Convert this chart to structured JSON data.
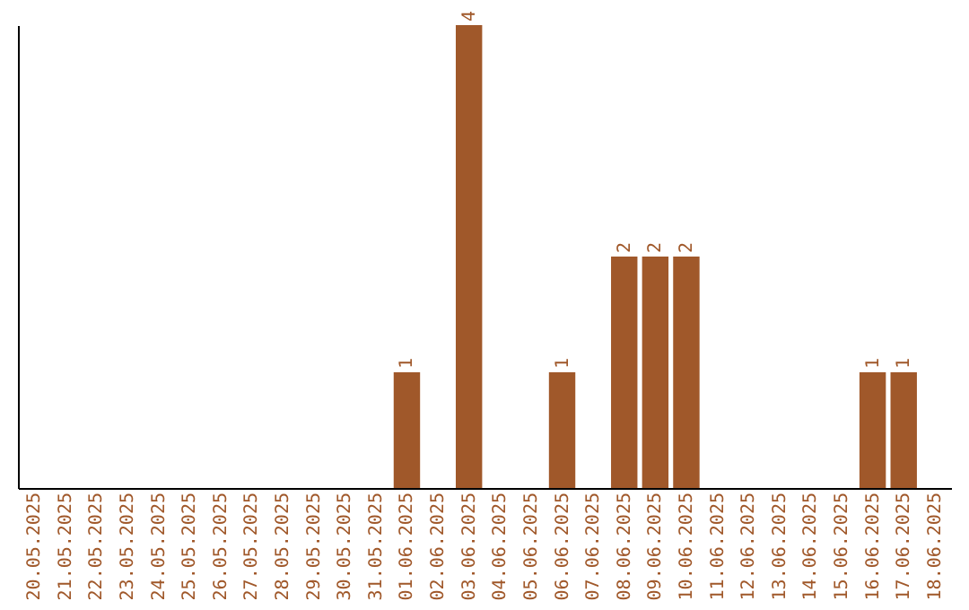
{
  "chart_data": {
    "type": "bar",
    "categories": [
      "20.05.2025",
      "21.05.2025",
      "22.05.2025",
      "23.05.2025",
      "24.05.2025",
      "25.05.2025",
      "26.05.2025",
      "27.05.2025",
      "28.05.2025",
      "29.05.2025",
      "30.05.2025",
      "31.05.2025",
      "01.06.2025",
      "02.06.2025",
      "03.06.2025",
      "04.06.2025",
      "05.06.2025",
      "06.06.2025",
      "07.06.2025",
      "08.06.2025",
      "09.06.2025",
      "10.06.2025",
      "11.06.2025",
      "12.06.2025",
      "13.06.2025",
      "14.06.2025",
      "15.06.2025",
      "16.06.2025",
      "17.06.2025",
      "18.06.2025"
    ],
    "values": [
      null,
      null,
      null,
      null,
      null,
      null,
      null,
      null,
      null,
      null,
      null,
      null,
      1,
      null,
      4,
      null,
      null,
      1,
      null,
      2,
      2,
      2,
      null,
      null,
      null,
      null,
      null,
      1,
      1,
      null
    ],
    "value_labels": [
      null,
      null,
      null,
      null,
      null,
      null,
      null,
      null,
      null,
      null,
      null,
      null,
      "1",
      null,
      "4",
      null,
      null,
      "1",
      null,
      "2",
      "2",
      "2",
      null,
      null,
      null,
      null,
      null,
      "1",
      "1",
      null
    ],
    "color": "#a0582a",
    "grid": false
  }
}
